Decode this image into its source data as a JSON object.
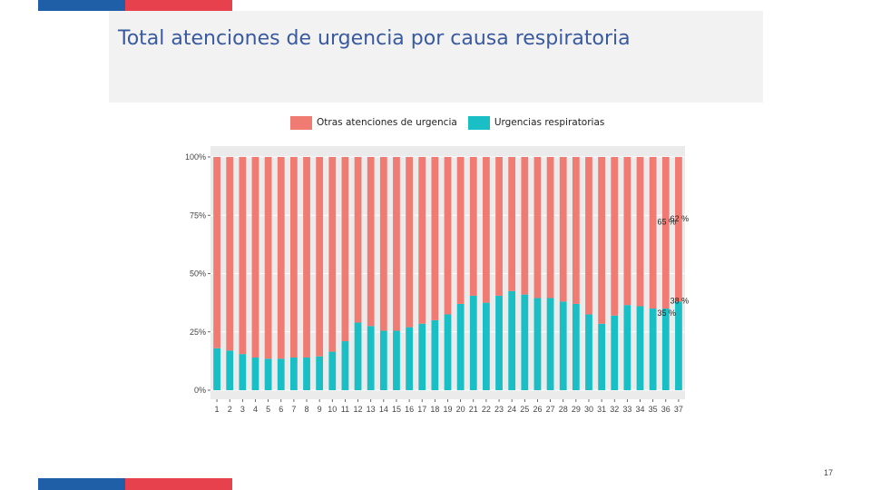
{
  "slide": {
    "title": "Total atenciones de urgencia por causa respiratoria",
    "page_number": "17",
    "colors": {
      "brand_blue": "#1f5fa8",
      "brand_red": "#e8414e",
      "title": "#3a5aa0"
    }
  },
  "chart_data": {
    "type": "bar",
    "stacked": true,
    "percent": true,
    "categories": [
      "1",
      "2",
      "3",
      "4",
      "5",
      "6",
      "7",
      "8",
      "9",
      "10",
      "11",
      "12",
      "13",
      "14",
      "15",
      "16",
      "17",
      "18",
      "19",
      "20",
      "21",
      "22",
      "23",
      "24",
      "25",
      "26",
      "27",
      "28",
      "29",
      "30",
      "31",
      "32",
      "33",
      "34",
      "35",
      "36",
      "37"
    ],
    "series": [
      {
        "name": "Otras atenciones de urgencia",
        "color": "#f07b72",
        "values": [
          82,
          83,
          84.5,
          86,
          86.5,
          86.5,
          86,
          86,
          85.5,
          83.5,
          79,
          71,
          72.5,
          74.5,
          74.5,
          73,
          71.5,
          70,
          67.5,
          63,
          59.5,
          62.5,
          59.5,
          57.5,
          59,
          60.5,
          60.5,
          62,
          63,
          67.5,
          71.5,
          68,
          63.5,
          64,
          65,
          65,
          62
        ]
      },
      {
        "name": "Urgencias respiratorias",
        "color": "#19bfc4",
        "values": [
          18,
          17,
          15.5,
          14,
          13.5,
          13.5,
          14,
          14,
          14.5,
          16.5,
          21,
          29,
          27.5,
          25.5,
          25.5,
          27,
          28.5,
          30,
          32.5,
          37,
          40.5,
          37.5,
          40.5,
          42.5,
          41,
          39.5,
          39.5,
          38,
          37,
          32.5,
          28.5,
          32,
          36.5,
          36,
          35,
          35,
          38
        ]
      }
    ],
    "y_ticks": [
      "0%",
      "25%",
      "50%",
      "75%",
      "100%"
    ],
    "ylim": [
      0,
      100
    ],
    "annotations": [
      {
        "text": "65 %",
        "series": "Otras atenciones de urgencia",
        "category": "36"
      },
      {
        "text": "62 %",
        "series": "Otras atenciones de urgencia",
        "category": "37"
      },
      {
        "text": "35 %",
        "series": "Urgencias respiratorias",
        "category": "36"
      },
      {
        "text": "38 %",
        "series": "Urgencias respiratorias",
        "category": "37"
      }
    ],
    "legend_position": "top",
    "grid": true
  }
}
